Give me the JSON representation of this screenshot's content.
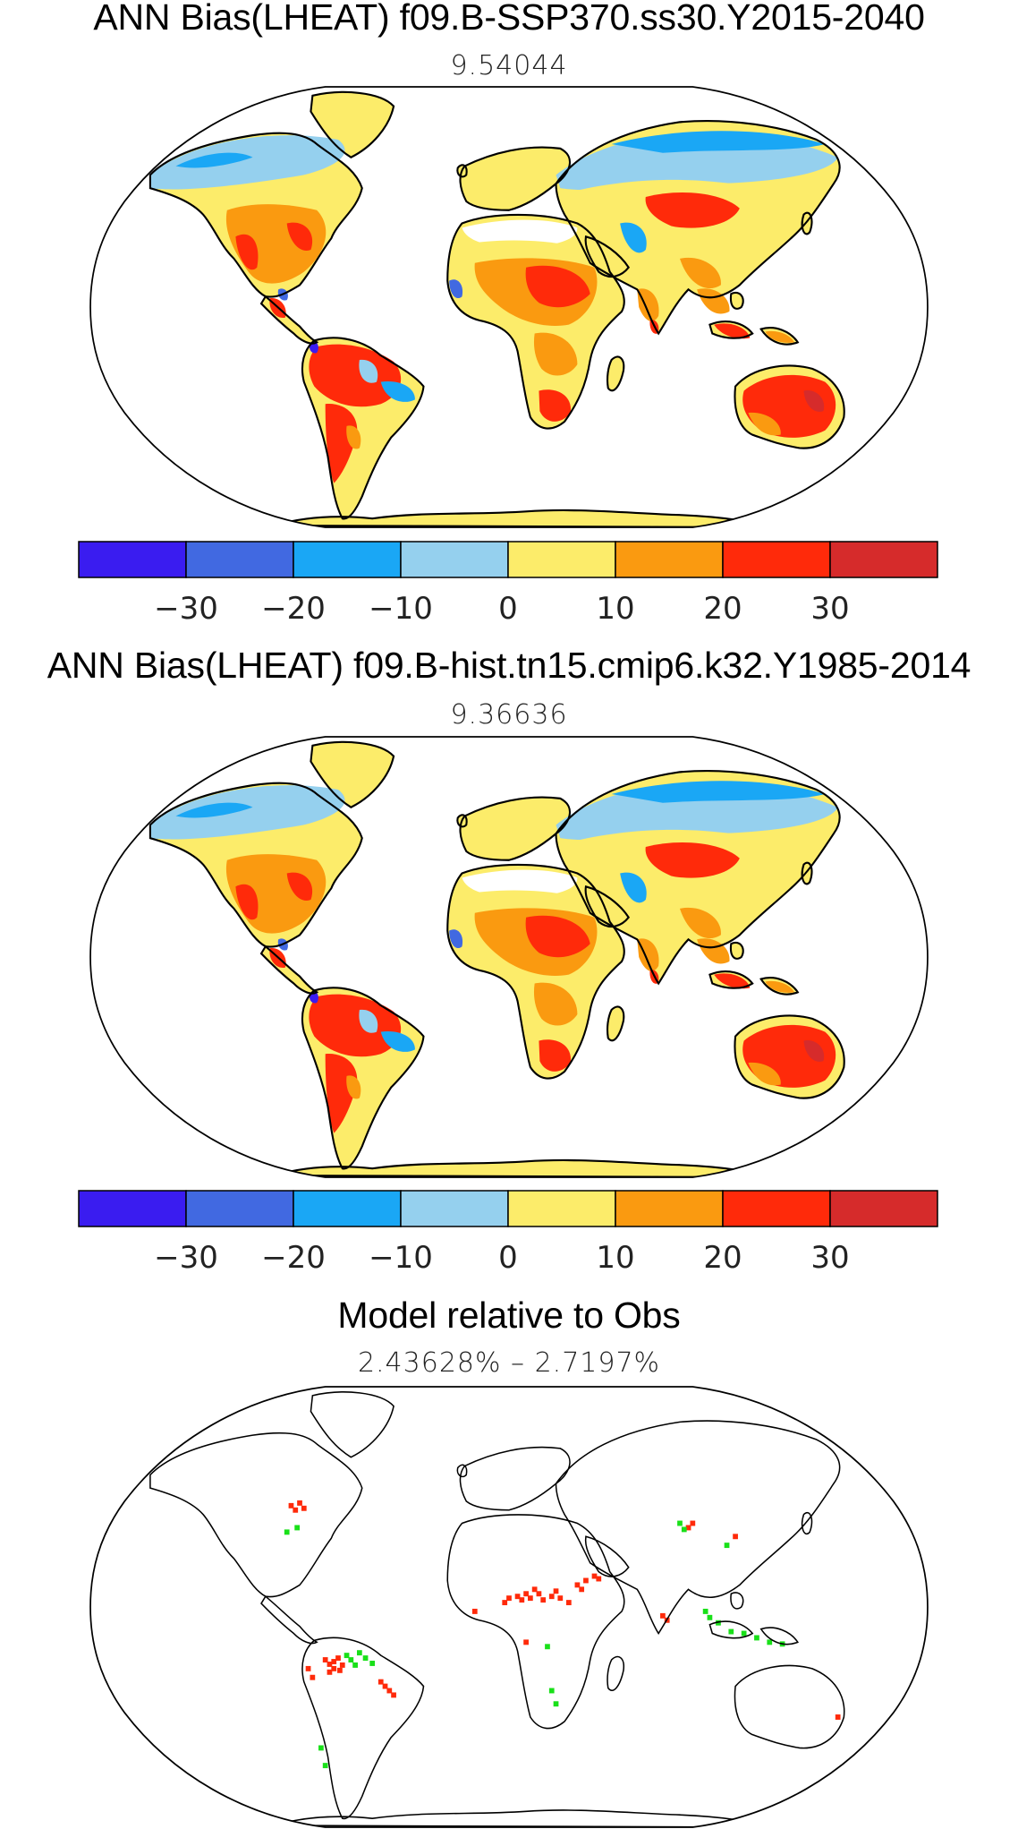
{
  "panels": [
    {
      "title": "ANN Bias(LHEAT) f09.B-SSP370.ss30.Y2015-2040",
      "subtitle": "9.54044"
    },
    {
      "title": "ANN Bias(LHEAT) f09.B-hist.tn15.cmip6.k32.Y1985-2014",
      "subtitle": "9.36636"
    },
    {
      "title": "Model relative to Obs",
      "subtitle": "2.43628% – 2.7197%"
    }
  ],
  "colorbar": {
    "colors": [
      "#3a1cf0",
      "#4169e1",
      "#1aa7f5",
      "#95d0ee",
      "#fcec6a",
      "#fa9a10",
      "#ff2a0a",
      "#d62b2b"
    ],
    "tick_labels": [
      "−30",
      "−20",
      "−10",
      "0",
      "10",
      "20",
      "30"
    ]
  }
}
